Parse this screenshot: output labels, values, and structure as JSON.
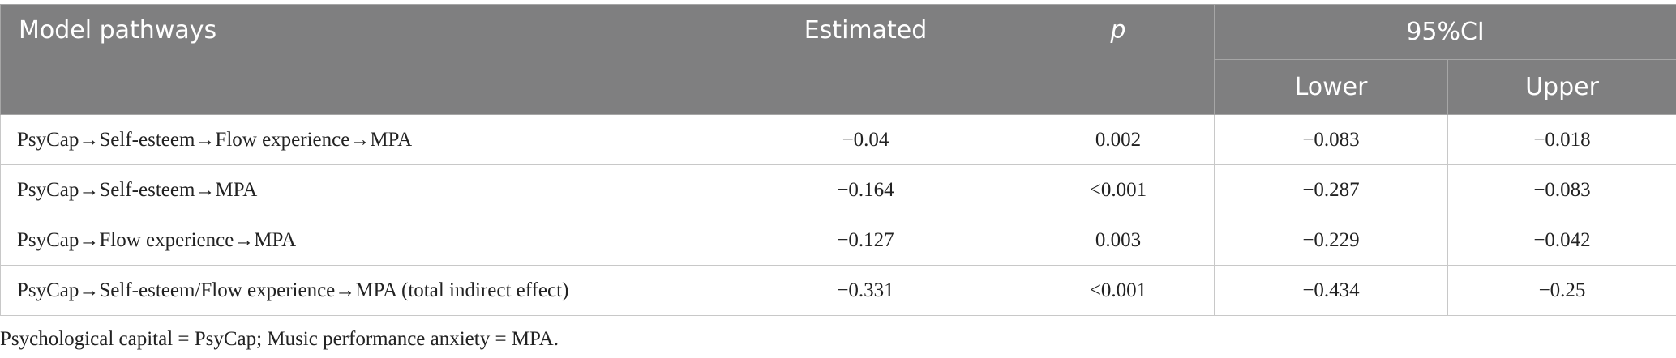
{
  "table": {
    "header": [
      "Model pathways",
      "Estimated",
      "p",
      "95%CI"
    ],
    "subheader": [
      "Lower",
      "Upper"
    ],
    "rows": [
      [
        "PsyCap→Self-esteem→Flow experience→MPA",
        "−0.04",
        "0.002",
        "−0.083",
        "−0.018"
      ],
      [
        "PsyCap→Self-esteem→MPA",
        "−0.164",
        "<0.001",
        "−0.287",
        "−0.083"
      ],
      [
        "PsyCap→Flow experience→MPA",
        "−0.127",
        "0.003",
        "−0.229",
        "−0.042"
      ],
      [
        "PsyCap→Self-esteem/Flow experience→MPA (total indirect effect)",
        "−0.331",
        "<0.001",
        "−0.434",
        "−0.25"
      ]
    ],
    "footnote": "Psychological capital = PsyCap; Music performance anxiety = MPA."
  }
}
